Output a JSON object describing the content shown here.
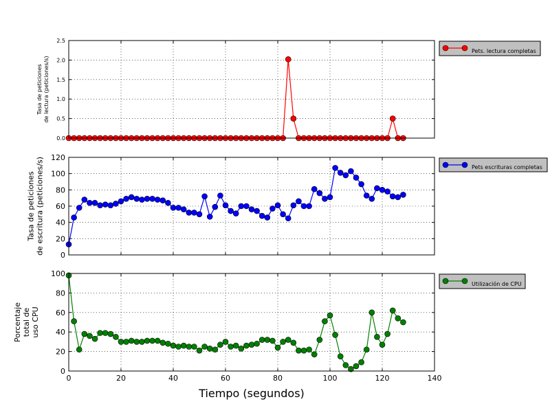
{
  "chart_data": {
    "type": "line",
    "xlabel": "Tiempo (segundos)",
    "xlim": [
      0,
      140
    ],
    "xticks": [
      "0",
      "20",
      "40",
      "60",
      "80",
      "100",
      "120",
      "140"
    ],
    "grid": true,
    "subplots": [
      {
        "id": "reads",
        "type": "line",
        "ylabel": [
          "Tasa de peticiones",
          "de lectura (peticiones/s)"
        ],
        "ylim": [
          0,
          2.5
        ],
        "yticks": [
          "0.0",
          "0.5",
          "1.0",
          "1.5",
          "2.0",
          "2.5"
        ],
        "legend_location": "outside-right",
        "series": [
          {
            "name": "Pets. lectura completas",
            "color": "#ff0000",
            "x": [
              0,
              2,
              4,
              6,
              8,
              10,
              12,
              14,
              16,
              18,
              20,
              22,
              24,
              26,
              28,
              30,
              32,
              34,
              36,
              38,
              40,
              42,
              44,
              46,
              48,
              50,
              52,
              54,
              56,
              58,
              60,
              62,
              64,
              66,
              68,
              70,
              72,
              74,
              76,
              78,
              80,
              82,
              84,
              86,
              88,
              90,
              92,
              94,
              96,
              98,
              100,
              102,
              104,
              106,
              108,
              110,
              112,
              114,
              116,
              118,
              120,
              122,
              124,
              126,
              128
            ],
            "y": [
              0,
              0,
              0,
              0,
              0,
              0,
              0,
              0,
              0,
              0,
              0,
              0,
              0,
              0,
              0,
              0,
              0,
              0,
              0,
              0,
              0,
              0,
              0,
              0,
              0,
              0,
              0,
              0,
              0,
              0,
              0,
              0,
              0,
              0,
              0,
              0,
              0,
              0,
              0,
              0,
              0,
              0,
              2.02,
              0.5,
              0,
              0,
              0,
              0,
              0,
              0,
              0,
              0,
              0,
              0,
              0,
              0,
              0,
              0,
              0,
              0,
              0,
              0,
              0.5,
              0,
              0
            ]
          }
        ]
      },
      {
        "id": "writes",
        "type": "line",
        "ylabel": [
          "Tasa de peticiones",
          "de escritura (peticiones/s)"
        ],
        "ylim": [
          0,
          120
        ],
        "yticks": [
          "0",
          "20",
          "40",
          "60",
          "80",
          "100",
          "120"
        ],
        "legend_location": "outside-right",
        "series": [
          {
            "name": "Pets escrituras completas",
            "color": "#0000ff",
            "x": [
              0,
              2,
              4,
              6,
              8,
              10,
              12,
              14,
              16,
              18,
              20,
              22,
              24,
              26,
              28,
              30,
              32,
              34,
              36,
              38,
              40,
              42,
              44,
              46,
              48,
              50,
              52,
              54,
              56,
              58,
              60,
              62,
              64,
              66,
              68,
              70,
              72,
              74,
              76,
              78,
              80,
              82,
              84,
              86,
              88,
              90,
              92,
              94,
              96,
              98,
              100,
              102,
              104,
              106,
              108,
              110,
              112,
              114,
              116,
              118,
              120,
              122,
              124,
              126,
              128
            ],
            "y": [
              13,
              46,
              58,
              68,
              64,
              64,
              61,
              62,
              61,
              63,
              66,
              69,
              71,
              69,
              68,
              69,
              69,
              68,
              67,
              64,
              58,
              58,
              56,
              52,
              52,
              50,
              72,
              47,
              59,
              73,
              61,
              54,
              51,
              60,
              60,
              56,
              54,
              48,
              46,
              57,
              61,
              50,
              45,
              61,
              66,
              60,
              60,
              81,
              76,
              69,
              71,
              107,
              101,
              98,
              103,
              95,
              87,
              73,
              69,
              82,
              80,
              78,
              72,
              71,
              74
            ]
          }
        ]
      },
      {
        "id": "cpu",
        "type": "line",
        "ylabel": [
          "Porcentaje",
          "total de",
          "uso CPU"
        ],
        "ylim": [
          0,
          100
        ],
        "yticks": [
          "0",
          "20",
          "40",
          "60",
          "80",
          "100"
        ],
        "legend_location": "outside-right",
        "series": [
          {
            "name": "Utilización de CPU",
            "color": "#008000",
            "x": [
              0,
              2,
              4,
              6,
              8,
              10,
              12,
              14,
              16,
              18,
              20,
              22,
              24,
              26,
              28,
              30,
              32,
              34,
              36,
              38,
              40,
              42,
              44,
              46,
              48,
              50,
              52,
              54,
              56,
              58,
              60,
              62,
              64,
              66,
              68,
              70,
              72,
              74,
              76,
              78,
              80,
              82,
              84,
              86,
              88,
              90,
              92,
              94,
              96,
              98,
              100,
              102,
              104,
              106,
              108,
              110,
              112,
              114,
              116,
              118,
              120,
              122,
              124,
              126,
              128
            ],
            "y": [
              98,
              51,
              22,
              38,
              36,
              33,
              39,
              39,
              38,
              35,
              30,
              30,
              31,
              30,
              30,
              31,
              31,
              31,
              29,
              28,
              26,
              25,
              26,
              25,
              25,
              21,
              25,
              23,
              22,
              27,
              30,
              25,
              26,
              23,
              26,
              27,
              28,
              32,
              32,
              31,
              24,
              30,
              32,
              29,
              21,
              21,
              22,
              17,
              32,
              51,
              57,
              37,
              15,
              6,
              2,
              5,
              9,
              22,
              60,
              35,
              27,
              38,
              62,
              54,
              50
            ]
          }
        ]
      }
    ]
  }
}
